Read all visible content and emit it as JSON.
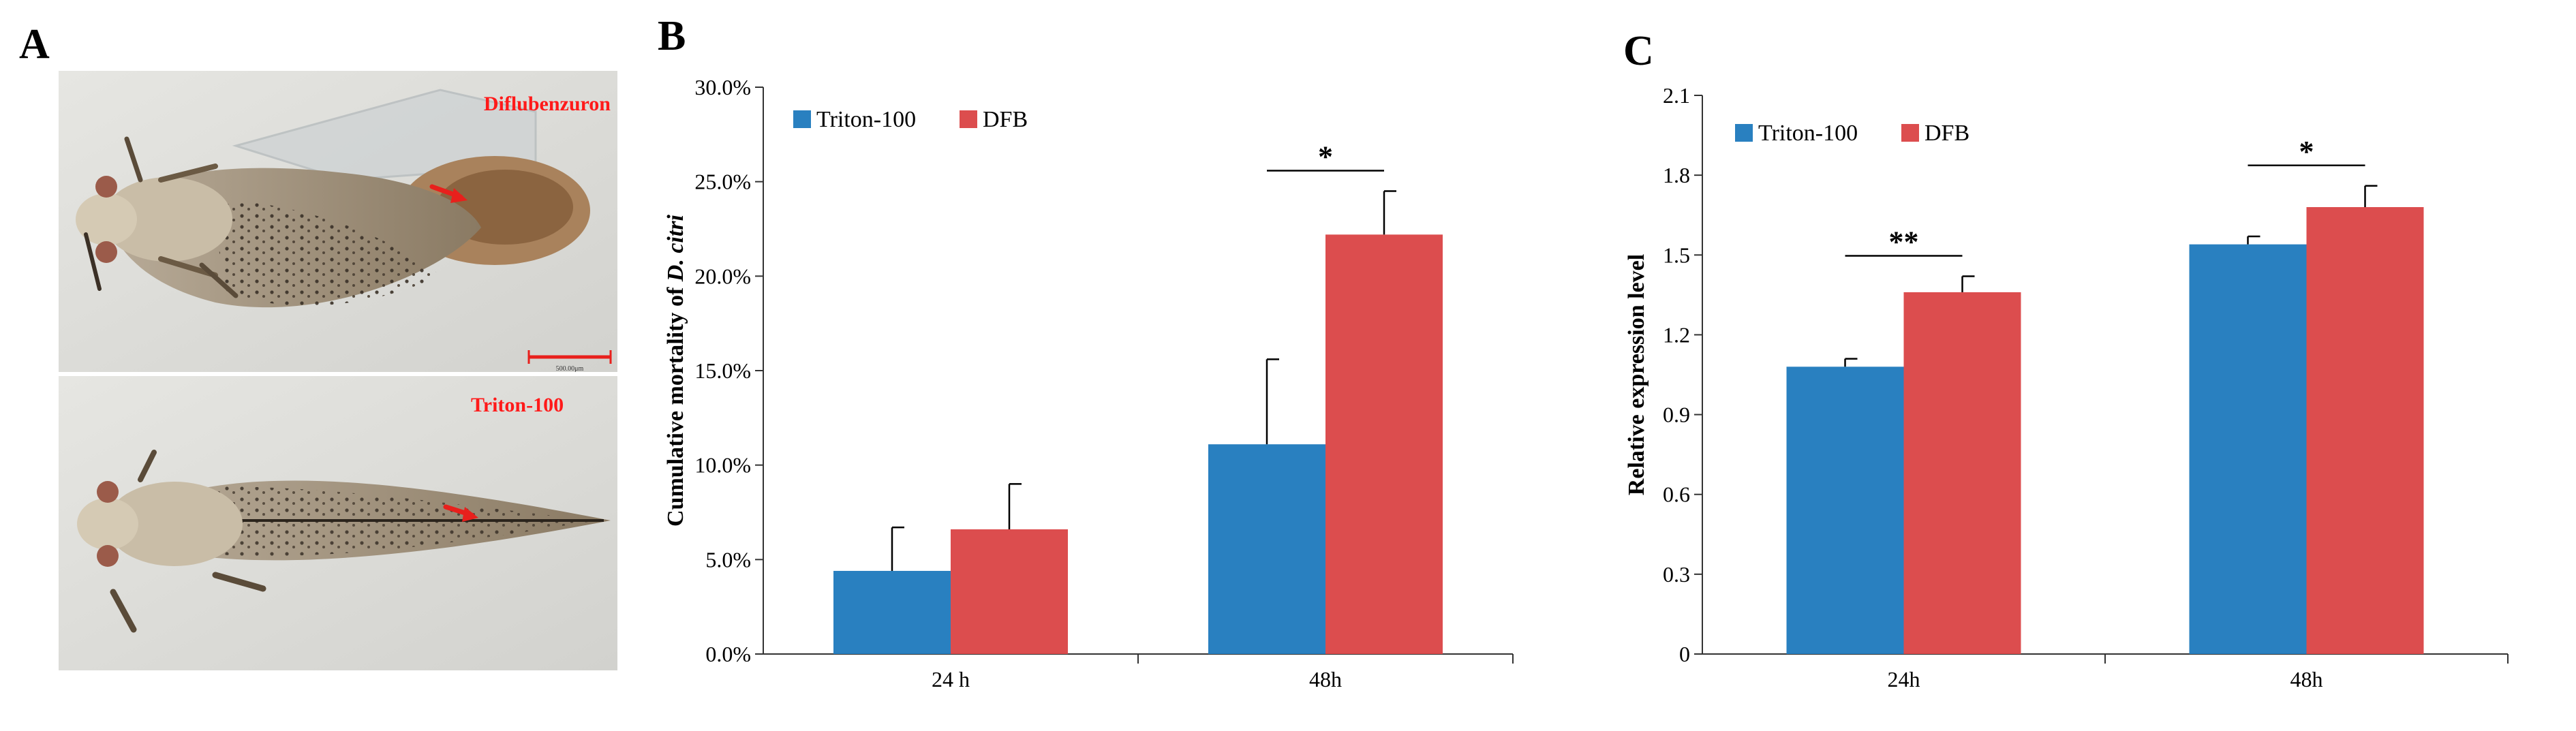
{
  "panels": {
    "a": {
      "letter": "A",
      "labels": {
        "top": "Diflubenzuron",
        "bottom": "Triton-100"
      },
      "scale_bar_text": "500.00μm",
      "colors": {
        "label": "#ff1a1a",
        "arrow": "#e8201c",
        "background": "#dcdcd8"
      }
    },
    "b": {
      "letter": "B"
    },
    "c": {
      "letter": "C"
    }
  },
  "chart_data": [
    {
      "type": "bar",
      "panel": "B",
      "categories": [
        "24 h",
        "48h"
      ],
      "series": [
        {
          "name": "Triton-100",
          "color": "#2980c0",
          "values": [
            4.4,
            11.1
          ],
          "errors": [
            2.3,
            4.5
          ]
        },
        {
          "name": "DFB",
          "color": "#dc4d4e",
          "values": [
            6.6,
            22.2
          ],
          "errors": [
            2.4,
            2.3
          ]
        }
      ],
      "ylabel": "Cumulative mortality of D. citri",
      "ylabel_prefix": "Cumulative mortality of",
      "ylabel_italic": "D. citri",
      "xlabel": "",
      "ylim": [
        0,
        30
      ],
      "yticks": [
        "0.0%",
        "5.0%",
        "10.0%",
        "15.0%",
        "20.0%",
        "25.0%",
        "30.0%"
      ],
      "yticks_values": [
        0,
        5,
        10,
        15,
        20,
        25,
        30
      ],
      "significance": [
        {
          "category": "48h",
          "label": "*"
        }
      ],
      "legend": "top-left",
      "grid": false
    },
    {
      "type": "bar",
      "panel": "C",
      "categories": [
        "24h",
        "48h"
      ],
      "series": [
        {
          "name": "Triton-100",
          "color": "#2980c0",
          "values": [
            1.08,
            1.54
          ],
          "errors": [
            0.03,
            0.03
          ]
        },
        {
          "name": "DFB",
          "color": "#dc4d4e",
          "values": [
            1.36,
            1.68
          ],
          "errors": [
            0.06,
            0.08
          ]
        }
      ],
      "ylabel": "Relative expression level",
      "xlabel": "",
      "ylim": [
        0,
        2.1
      ],
      "yticks": [
        "0",
        "0.3",
        "0.6",
        "0.9",
        "1.2",
        "1.5",
        "1.8",
        "2.1"
      ],
      "yticks_values": [
        0,
        0.3,
        0.6,
        0.9,
        1.2,
        1.5,
        1.8,
        2.1
      ],
      "significance": [
        {
          "category": "24h",
          "label": "**"
        },
        {
          "category": "48h",
          "label": "*"
        }
      ],
      "legend": "top-left",
      "grid": false
    }
  ]
}
